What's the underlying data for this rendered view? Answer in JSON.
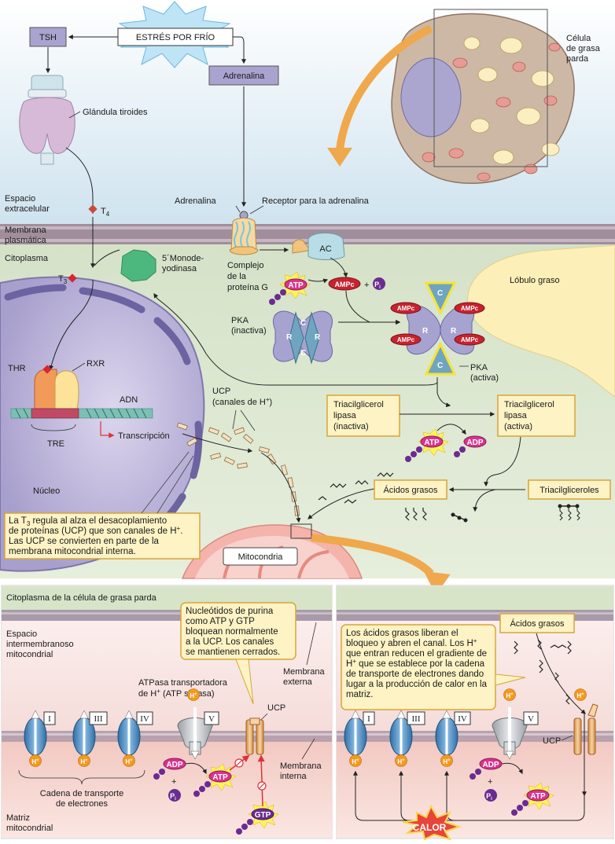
{
  "top": {
    "stress": "ESTRÉS POR FRÍO",
    "tsh": "TSH",
    "adrenaline_box": "Adrenalina",
    "thyroid": "Glándula tiroides",
    "brown_cell": [
      "Célula",
      "de grasa",
      "parda"
    ],
    "extracellular": [
      "Espacio",
      "extracelular"
    ],
    "t4": "T",
    "t4_sub": "4",
    "membrane": [
      "Membrana",
      "plasmática"
    ],
    "cytoplasm": "Citoplasma",
    "t3": "T",
    "t3_sub": "3",
    "deiodinase": [
      "5´Monode-",
      "yodinasa"
    ],
    "adrenaline": "Adrenalina",
    "receptor": "Receptor para la adrenalina",
    "ac": "AC",
    "gprotein": [
      "Complejo",
      "de la",
      "proteína G"
    ],
    "atp": "ATP",
    "campc": "AMPc",
    "plus": "+",
    "pi": "P",
    "pi_sub": "i",
    "pka_inactive": [
      "PKA",
      "(inactiva)"
    ],
    "pka_active": [
      "PKA",
      "(activa)"
    ],
    "r": "R",
    "c": "C",
    "lipid_lobule": "Lóbulo graso",
    "thr": "THR",
    "rxr": "RXR",
    "adn": "ADN",
    "tre": "TRE",
    "transcription": "Transcripción",
    "nucleus": "Núcleo",
    "ucp": [
      "UCP",
      "(canales de H",
      "+",
      ")"
    ],
    "lipase_inactive": [
      "Triacilglicerol",
      "lipasa",
      "(inactiva)"
    ],
    "lipase_active": [
      "Triacilglicerol",
      "lipasa",
      "(activa)"
    ],
    "adp": "ADP",
    "fatty_acids": "Ácidos grasos",
    "triacylglycerols": "Triacilgliceroles",
    "note": [
      "La T",
      "3",
      " regula al alza el desacoplamiento",
      "de proteínas (UCP) que son canales de H",
      "+",
      ".",
      "Las UCP se convierten en parte de la",
      "membrana mitocondrial interna."
    ],
    "mitochondria": "Mitocondria"
  },
  "bottom_left": {
    "title": "Citoplasma de la célula de grasa parda",
    "intermembrane": [
      "Espacio",
      "intermembranoso",
      "mitocondrial"
    ],
    "purine_note": [
      "Nucleótidos de purina",
      "como ATP y GTP",
      "bloquean normalmente",
      "a la UCP. Los canales",
      "se mantienen cerrados."
    ],
    "outer": [
      "Membrana",
      "externa"
    ],
    "atp_synthase": [
      "ATPasa transportadora",
      "de H",
      "+",
      " (ATP sintasa)"
    ],
    "ucp": "UCP",
    "complexes": [
      "I",
      "III",
      "IV",
      "V"
    ],
    "h": "H",
    "hplus": "+",
    "chain": [
      "Cadena de transporte",
      "de electrones"
    ],
    "adp": "ADP",
    "plus": "+",
    "pi": "P",
    "pi_sub": "i",
    "atp": "ATP",
    "gtp": "GTP",
    "inner": [
      "Membrana",
      "interna"
    ],
    "matrix": [
      "Matriz",
      "mitocondrial"
    ]
  },
  "bottom_right": {
    "note": [
      "Los ácidos grasos liberan el",
      "bloqueo y abren el canal. Los H",
      "+",
      "que entran reducen el gradiente de",
      "H",
      "+",
      " que se establece por la cadena",
      "de transporte de electrones dando",
      "lugar a la producción de calor en la",
      "matriz."
    ],
    "fatty_acids": "Ácidos grasos",
    "complexes": [
      "I",
      "III",
      "IV",
      "V"
    ],
    "ucp": "UCP",
    "adp": "ADP",
    "plus": "+",
    "pi": "P",
    "pi_sub": "i",
    "atp": "ATP",
    "heat": "CALOR"
  }
}
